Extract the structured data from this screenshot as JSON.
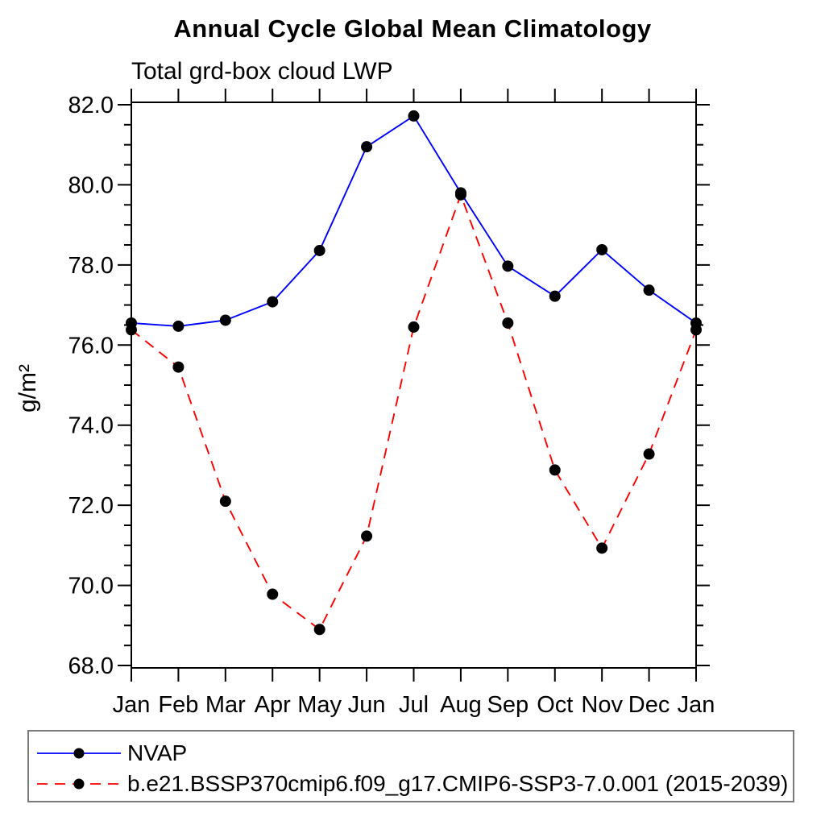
{
  "title": "Annual Cycle Global Mean Climatology",
  "chart_data": {
    "type": "line",
    "title": "Annual Cycle Global Mean Climatology",
    "subtitle": "Total grd-box cloud LWP",
    "ylabel": "g/m²",
    "xlabel": "",
    "categories": [
      "Jan",
      "Feb",
      "Mar",
      "Apr",
      "May",
      "Jun",
      "Jul",
      "Aug",
      "Sep",
      "Oct",
      "Nov",
      "Dec",
      "Jan"
    ],
    "series": [
      {
        "name": "NVAP",
        "color": "#0000ff",
        "line_style": "solid",
        "marker": "filled-circle",
        "values": [
          76.55,
          76.47,
          76.62,
          77.08,
          78.36,
          80.95,
          81.72,
          79.8,
          77.97,
          77.22,
          78.38,
          77.37,
          76.55
        ]
      },
      {
        "name": "b.e21.BSSP370cmip6.f09_g17.CMIP6-SSP3-7.0.001 (2015-2039)",
        "color": "#ff0000",
        "line_style": "dashed",
        "marker": "filled-circle",
        "values": [
          76.38,
          75.45,
          72.1,
          69.78,
          68.9,
          71.23,
          76.45,
          79.75,
          76.55,
          72.88,
          70.93,
          73.28,
          76.38
        ]
      }
    ],
    "ylim": [
      68.0,
      82.0
    ],
    "ytick_major_step": 2.0,
    "ytick_minor_step": 0.5,
    "ytick_labels": [
      "68.0",
      "70.0",
      "72.0",
      "74.0",
      "76.0",
      "78.0",
      "80.0",
      "82.0"
    ],
    "marker_color": "#000000",
    "axis_color": "#000000",
    "grid": false,
    "legend_position": "bottom-left"
  }
}
